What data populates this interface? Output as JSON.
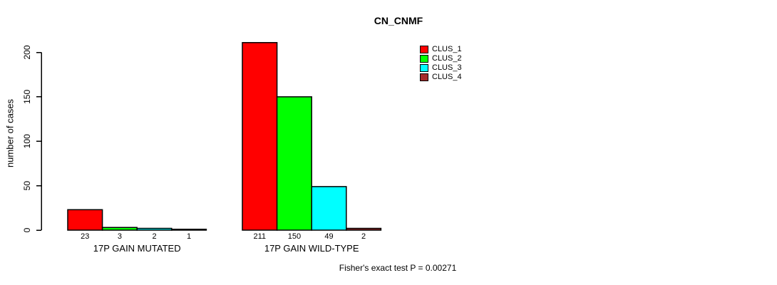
{
  "chart_data": {
    "type": "bar",
    "title": "CN_CNMF",
    "ylabel": "number of cases",
    "xlabel": "",
    "annotation": "Fisher's exact test P = 0.00271",
    "categories": [
      "17P GAIN MUTATED",
      "17P GAIN WILD-TYPE"
    ],
    "series": [
      {
        "name": "CLUS_1",
        "color": "#FF0000",
        "values": [
          23,
          211
        ]
      },
      {
        "name": "CLUS_2",
        "color": "#00FF00",
        "values": [
          3,
          150
        ]
      },
      {
        "name": "CLUS_3",
        "color": "#00FFFF",
        "values": [
          2,
          49
        ]
      },
      {
        "name": "CLUS_4",
        "color": "#A52A2A",
        "values": [
          1,
          2
        ]
      }
    ],
    "yticks": [
      0,
      50,
      100,
      150,
      200
    ],
    "ylim": [
      0,
      211
    ],
    "grid": false,
    "value_labels_shown": true,
    "legend_position": "top-right-inside",
    "bar_edge_color": "#000000",
    "axis_color": "#000000",
    "text_color": "#000000",
    "background_color": "#FFFFFF"
  }
}
